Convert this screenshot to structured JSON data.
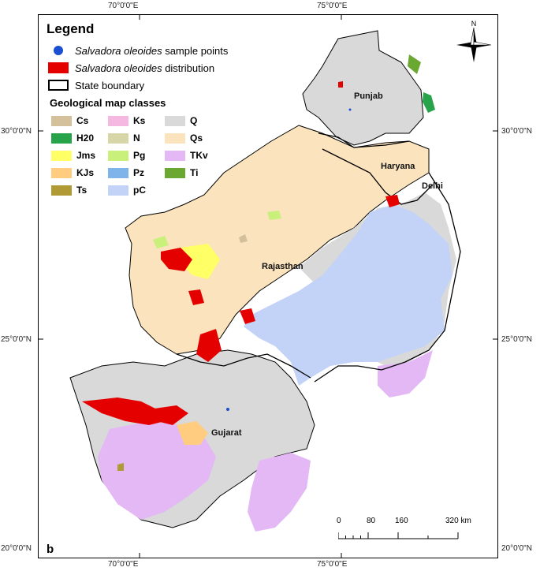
{
  "axes": {
    "top": [
      "70°0'0\"E",
      "75°0'0\"E"
    ],
    "bottom": [
      "70°0'0\"E",
      "75°0'0\"E"
    ],
    "left": [
      "30°0'0\"N",
      "25°0'0\"N",
      "20°0'0\"N"
    ],
    "right": [
      "30°0'0\"N",
      "25°0'0\"N",
      "20°0'0\"N"
    ]
  },
  "legend": {
    "title": "Legend",
    "sample_points": {
      "italic": "Salvadora oleoides",
      "text": " sample points"
    },
    "distribution": {
      "italic": "Salvadora oleoides",
      "text": " distribution"
    },
    "state_boundary": "State boundary",
    "geo_title": "Geological map classes",
    "classes": [
      {
        "code": "Cs",
        "color": "#d4c09a"
      },
      {
        "code": "Ks",
        "color": "#f5b8e0"
      },
      {
        "code": "Q",
        "color": "#d9d9d9"
      },
      {
        "code": "H20",
        "color": "#27a34a"
      },
      {
        "code": "N",
        "color": "#d6d6a8"
      },
      {
        "code": "Qs",
        "color": "#fae3bd"
      },
      {
        "code": "Jms",
        "color": "#ffff66"
      },
      {
        "code": "Pg",
        "color": "#c9f07a"
      },
      {
        "code": "TKv",
        "color": "#e3b8f5"
      },
      {
        "code": "KJs",
        "color": "#ffcc80"
      },
      {
        "code": "Pz",
        "color": "#7fb4ea"
      },
      {
        "code": "Ti",
        "color": "#6aa832"
      },
      {
        "code": "Ts",
        "color": "#b09a33"
      },
      {
        "code": "pC",
        "color": "#c3d3f7"
      }
    ]
  },
  "places": {
    "punjab": "Punjab",
    "haryana": "Haryana",
    "delhi": "Delhi",
    "rajasthan": "Rajasthan",
    "gujarat": "Gujarat"
  },
  "panel_label": "b",
  "compass": {
    "north": "N"
  },
  "scale": {
    "ticks": [
      "0",
      "80",
      "160",
      "320 km"
    ]
  }
}
